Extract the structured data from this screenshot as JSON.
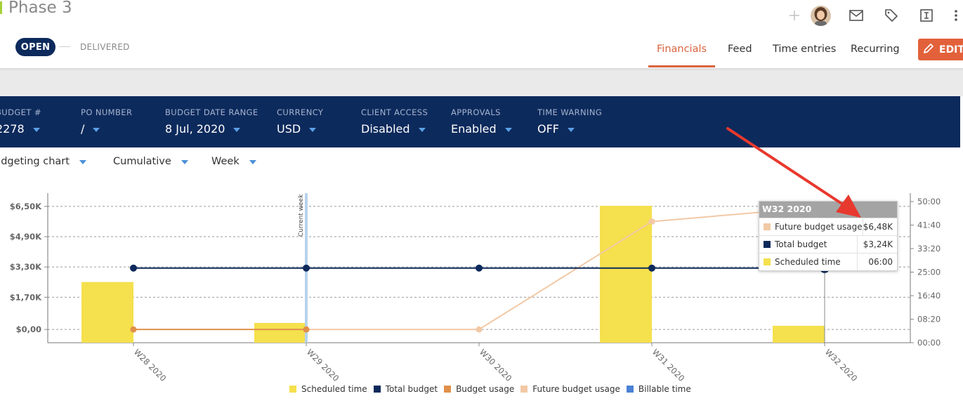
{
  "header": {
    "title": "Phase 3",
    "status": {
      "open_label": "OPEN",
      "delivered_label": "DELIVERED"
    },
    "icons": [
      "plus-icon",
      "mail-icon",
      "tag-icon",
      "invoice-icon",
      "more-vertical-icon"
    ],
    "tabs": [
      {
        "label": "Financials",
        "active": true
      },
      {
        "label": "Feed",
        "active": false
      },
      {
        "label": "Time entries",
        "active": false
      },
      {
        "label": "Recurring",
        "active": false
      }
    ],
    "edit_label": "EDIT"
  },
  "info": {
    "budget_label": "BUDGET #",
    "budget_value": "2278",
    "po_label": "PO NUMBER",
    "po_value": "/",
    "range_label": "BUDGET DATE RANGE",
    "range_value": "8 Jul, 2020",
    "currency_label": "CURRENCY",
    "currency_value": "USD",
    "client_label": "CLIENT ACCESS",
    "client_value": "Disabled",
    "approvals_label": "APPROVALS",
    "approvals_value": "Enabled",
    "warning_label": "TIME WARNING",
    "warning_value": "OFF"
  },
  "selectors": {
    "chart_type": "udgeting chart",
    "mode": "Cumulative",
    "period": "Week"
  },
  "colors": {
    "navy": "#0d2a5c",
    "accent": "#d9633d",
    "scheduled": "#f5e04d",
    "total_budget": "#0d2a5c",
    "budget_usage": "#e0904a",
    "future_budget_usage": "#f2c9a6",
    "billable": "#4a82d6",
    "annotation": "#e8392e"
  },
  "chart_data": {
    "type": "bar",
    "categories": [
      "W28 2020",
      "W29 2020",
      "W30 2020",
      "W31 2020",
      "W32 2020"
    ],
    "y_left_ticks": [
      "$0,00",
      "$1,70K",
      "$3,30K",
      "$4,90K",
      "$6,50K"
    ],
    "y_left_range": [
      -700,
      7200
    ],
    "y_right_ticks": [
      "00:00",
      "08:20",
      "16:40",
      "25:00",
      "33:20",
      "41:40",
      "50:00"
    ],
    "y_right_range_hours": [
      0,
      50
    ],
    "series": [
      {
        "name": "Scheduled time",
        "kind": "bar",
        "axis": "right_hours",
        "values": [
          21.5,
          7,
          0,
          48.5,
          6
        ]
      },
      {
        "name": "Total budget",
        "kind": "line",
        "axis": "left",
        "values": [
          3240,
          3240,
          3240,
          3240,
          3240
        ]
      },
      {
        "name": "Budget usage",
        "kind": "line",
        "axis": "left",
        "values": [
          0,
          0,
          null,
          null,
          null
        ]
      },
      {
        "name": "Future budget usage",
        "kind": "line",
        "axis": "left",
        "values": [
          null,
          0,
          0,
          5700,
          6480
        ]
      },
      {
        "name": "Billable time",
        "kind": "bar",
        "axis": "right_hours",
        "values": [
          0,
          0,
          0,
          0,
          0
        ]
      }
    ],
    "current_week_label": "Current week",
    "current_week_index": 1,
    "tooltip": {
      "title": "W32 2020",
      "rows": [
        {
          "name": "Future budget usage",
          "value": "$6,48K"
        },
        {
          "name": "Total budget",
          "value": "$3,24K"
        },
        {
          "name": "Scheduled time",
          "value": "06:00"
        }
      ]
    },
    "legend": [
      "Scheduled time",
      "Total budget",
      "Budget usage",
      "Future budget usage",
      "Billable time"
    ]
  }
}
